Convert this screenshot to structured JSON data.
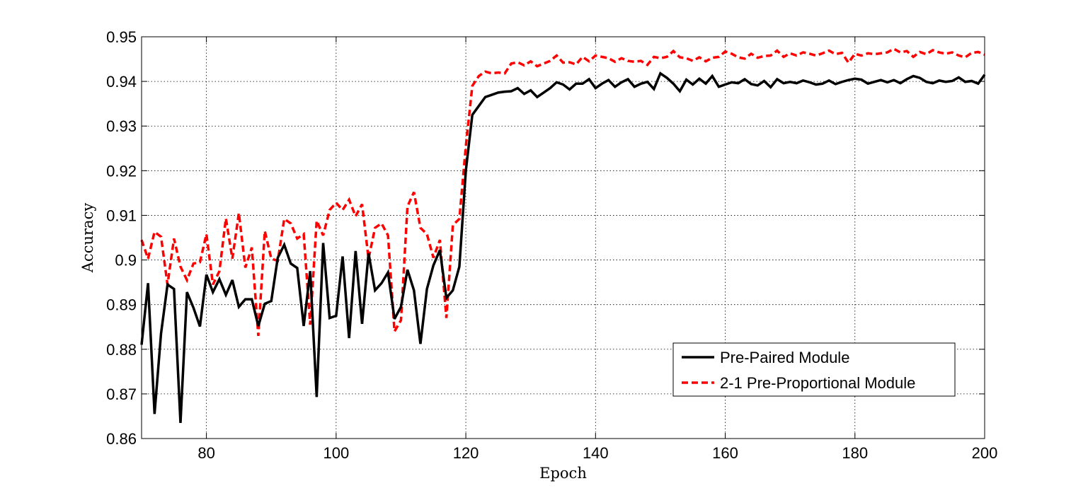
{
  "chart_data": {
    "type": "line",
    "title": "",
    "xlabel": "Epoch",
    "ylabel": "Accuracy",
    "xlim": [
      70,
      200
    ],
    "ylim": [
      0.86,
      0.95
    ],
    "xticks": [
      80,
      100,
      120,
      140,
      160,
      180,
      200
    ],
    "yticks": [
      0.86,
      0.87,
      0.88,
      0.89,
      0.9,
      0.91,
      0.92,
      0.93,
      0.94,
      0.95
    ],
    "xtick_labels": [
      "80",
      "100",
      "120",
      "140",
      "160",
      "180",
      "200"
    ],
    "ytick_labels": [
      "0.86",
      "0.87",
      "0.88",
      "0.89",
      "0.9",
      "0.91",
      "0.92",
      "0.93",
      "0.94",
      "0.95"
    ],
    "grid": true,
    "legend_position": "bottom-right",
    "series": [
      {
        "name": "Pre-Paired Module",
        "color": "#000000",
        "style": "solid",
        "x": [
          70,
          71,
          72,
          73,
          74,
          75,
          76,
          77,
          78,
          79,
          80,
          81,
          82,
          83,
          84,
          85,
          86,
          87,
          88,
          89,
          90,
          91,
          92,
          93,
          94,
          95,
          96,
          97,
          98,
          99,
          100,
          101,
          102,
          103,
          104,
          105,
          106,
          107,
          108,
          109,
          110,
          111,
          112,
          113,
          114,
          115,
          116,
          117,
          118,
          119,
          120,
          121,
          122,
          123,
          124,
          125,
          126,
          127,
          128,
          129,
          130,
          131,
          132,
          133,
          134,
          135,
          136,
          137,
          138,
          139,
          140,
          141,
          142,
          143,
          144,
          145,
          146,
          147,
          148,
          149,
          150,
          151,
          152,
          153,
          154,
          155,
          156,
          157,
          158,
          159,
          160,
          161,
          162,
          163,
          164,
          165,
          166,
          167,
          168,
          169,
          170,
          171,
          172,
          173,
          174,
          175,
          176,
          177,
          178,
          179,
          180,
          181,
          182,
          183,
          184,
          185,
          186,
          187,
          188,
          189,
          190,
          191,
          192,
          193,
          194,
          195,
          196,
          197,
          198,
          199,
          200
        ],
        "values": [
          0.881,
          0.8948,
          0.8655,
          0.8835,
          0.8945,
          0.8935,
          0.8635,
          0.8928,
          0.8893,
          0.8851,
          0.8967,
          0.8928,
          0.8957,
          0.8922,
          0.8955,
          0.8895,
          0.8912,
          0.8912,
          0.8852,
          0.8902,
          0.8908,
          0.9005,
          0.9034,
          0.8992,
          0.8982,
          0.8852,
          0.8975,
          0.8693,
          0.9038,
          0.887,
          0.8875,
          0.9008,
          0.8825,
          0.902,
          0.8857,
          0.9015,
          0.8932,
          0.8948,
          0.8972,
          0.8868,
          0.8895,
          0.8978,
          0.8932,
          0.8812,
          0.8935,
          0.8988,
          0.9022,
          0.8915,
          0.8932,
          0.8985,
          0.92,
          0.9325,
          0.9345,
          0.9365,
          0.937,
          0.9375,
          0.9377,
          0.9378,
          0.9385,
          0.9372,
          0.938,
          0.9365,
          0.9375,
          0.9385,
          0.9398,
          0.9393,
          0.9382,
          0.9395,
          0.9395,
          0.9405,
          0.9385,
          0.9395,
          0.9403,
          0.9388,
          0.9398,
          0.9405,
          0.9388,
          0.9395,
          0.9399,
          0.9383,
          0.9418,
          0.9408,
          0.9395,
          0.9378,
          0.9404,
          0.9393,
          0.9406,
          0.9395,
          0.9412,
          0.9388,
          0.9393,
          0.9398,
          0.9396,
          0.9405,
          0.9394,
          0.9391,
          0.9401,
          0.9387,
          0.9405,
          0.9396,
          0.9399,
          0.9396,
          0.9402,
          0.9398,
          0.9393,
          0.9395,
          0.9402,
          0.9394,
          0.9399,
          0.9403,
          0.9406,
          0.9404,
          0.9395,
          0.9399,
          0.9403,
          0.9398,
          0.9403,
          0.9396,
          0.9405,
          0.9412,
          0.9408,
          0.9399,
          0.9396,
          0.9402,
          0.9399,
          0.9401,
          0.9409,
          0.9399,
          0.9401,
          0.9395,
          0.9415
        ]
      },
      {
        "name": "2-1 Pre-Proportional Module",
        "color": "#ff0000",
        "style": "dashed",
        "x": [
          70,
          71,
          72,
          73,
          74,
          75,
          76,
          77,
          78,
          79,
          80,
          81,
          82,
          83,
          84,
          85,
          86,
          87,
          88,
          89,
          90,
          91,
          92,
          93,
          94,
          95,
          96,
          97,
          98,
          99,
          100,
          101,
          102,
          103,
          104,
          105,
          106,
          107,
          108,
          109,
          110,
          111,
          112,
          113,
          114,
          115,
          116,
          117,
          118,
          119,
          120,
          121,
          122,
          123,
          124,
          125,
          126,
          127,
          128,
          129,
          130,
          131,
          132,
          133,
          134,
          135,
          136,
          137,
          138,
          139,
          140,
          141,
          142,
          143,
          144,
          145,
          146,
          147,
          148,
          149,
          150,
          151,
          152,
          153,
          154,
          155,
          156,
          157,
          158,
          159,
          160,
          161,
          162,
          163,
          164,
          165,
          166,
          167,
          168,
          169,
          170,
          171,
          172,
          173,
          174,
          175,
          176,
          177,
          178,
          179,
          180,
          181,
          182,
          183,
          184,
          185,
          186,
          187,
          188,
          189,
          190,
          191,
          192,
          193,
          194,
          195,
          196,
          197,
          198,
          199,
          200
        ],
        "values": [
          0.9045,
          0.9003,
          0.9063,
          0.9052,
          0.8945,
          0.9048,
          0.8985,
          0.8955,
          0.8992,
          0.8995,
          0.9058,
          0.8945,
          0.8975,
          0.9093,
          0.9003,
          0.9105,
          0.8983,
          0.9028,
          0.883,
          0.9065,
          0.9003,
          0.8998,
          0.9092,
          0.9082,
          0.9048,
          0.9058,
          0.8855,
          0.9088,
          0.9055,
          0.9112,
          0.9128,
          0.9112,
          0.9135,
          0.9098,
          0.9125,
          0.9003,
          0.9072,
          0.9082,
          0.9055,
          0.884,
          0.8865,
          0.912,
          0.9152,
          0.9072,
          0.9058,
          0.9005,
          0.9045,
          0.887,
          0.9078,
          0.9092,
          0.9255,
          0.939,
          0.9412,
          0.9422,
          0.9418,
          0.942,
          0.9418,
          0.944,
          0.9443,
          0.9436,
          0.9445,
          0.9434,
          0.944,
          0.9446,
          0.9458,
          0.9442,
          0.9443,
          0.9438,
          0.9455,
          0.9445,
          0.9458,
          0.9455,
          0.9452,
          0.9444,
          0.9452,
          0.9446,
          0.9444,
          0.9446,
          0.9437,
          0.9455,
          0.9452,
          0.9455,
          0.9468,
          0.9454,
          0.9452,
          0.9446,
          0.9454,
          0.9445,
          0.9453,
          0.9455,
          0.9467,
          0.9462,
          0.9454,
          0.9451,
          0.9462,
          0.9453,
          0.9457,
          0.9458,
          0.9469,
          0.9455,
          0.9463,
          0.9458,
          0.9465,
          0.9462,
          0.9458,
          0.9463,
          0.9469,
          0.9461,
          0.9464,
          0.9442,
          0.9462,
          0.9458,
          0.9463,
          0.9461,
          0.9463,
          0.9465,
          0.9473,
          0.9465,
          0.9468,
          0.9455,
          0.9466,
          0.9461,
          0.947,
          0.9465,
          0.9462,
          0.9465,
          0.9458,
          0.9454,
          0.9464,
          0.9466,
          0.946
        ]
      }
    ]
  }
}
